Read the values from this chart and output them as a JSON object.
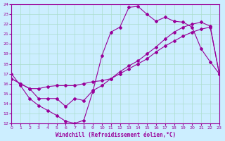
{
  "xlabel": "Windchill (Refroidissement éolien,°C)",
  "bg_color": "#cceeff",
  "line_color": "#990099",
  "grid_color": "#aaddcc",
  "xlim": [
    0,
    23
  ],
  "ylim": [
    12,
    24
  ],
  "xticks": [
    0,
    1,
    2,
    3,
    4,
    5,
    6,
    7,
    8,
    9,
    10,
    11,
    12,
    13,
    14,
    15,
    16,
    17,
    18,
    19,
    20,
    21,
    22,
    23
  ],
  "yticks": [
    12,
    13,
    14,
    15,
    16,
    17,
    18,
    19,
    20,
    21,
    22,
    23,
    24
  ],
  "line1_x": [
    0,
    1,
    2,
    3,
    4,
    5,
    6,
    7,
    8,
    9,
    10,
    11,
    12,
    13,
    14,
    15,
    16,
    17,
    18,
    19,
    20,
    21,
    22,
    23
  ],
  "line1_y": [
    17.0,
    15.8,
    14.5,
    13.8,
    13.3,
    12.8,
    12.2,
    12.0,
    12.3,
    15.2,
    18.8,
    21.2,
    21.7,
    23.7,
    23.8,
    23.0,
    22.3,
    22.7,
    22.3,
    22.2,
    21.7,
    19.5,
    18.2,
    17.0
  ],
  "line2_x": [
    0,
    1,
    2,
    3,
    4,
    5,
    6,
    7,
    8,
    9,
    10,
    11,
    12,
    13,
    14,
    15,
    16,
    17,
    18,
    19,
    20,
    21,
    22,
    23
  ],
  "line2_y": [
    16.5,
    16.0,
    15.5,
    15.5,
    15.7,
    15.8,
    15.8,
    15.8,
    16.0,
    16.2,
    16.3,
    16.5,
    17.0,
    17.5,
    18.0,
    18.5,
    19.2,
    19.8,
    20.3,
    20.8,
    21.2,
    21.5,
    21.7,
    17.0
  ],
  "line3_x": [
    0,
    1,
    2,
    3,
    4,
    5,
    6,
    7,
    8,
    9,
    10,
    11,
    12,
    13,
    14,
    15,
    16,
    17,
    18,
    19,
    20,
    21,
    22,
    23
  ],
  "line3_y": [
    16.5,
    16.0,
    15.5,
    14.5,
    14.5,
    14.5,
    13.7,
    14.5,
    14.3,
    15.3,
    15.8,
    16.5,
    17.2,
    17.8,
    18.3,
    19.0,
    19.7,
    20.5,
    21.2,
    21.7,
    22.0,
    22.2,
    21.8,
    17.0
  ]
}
